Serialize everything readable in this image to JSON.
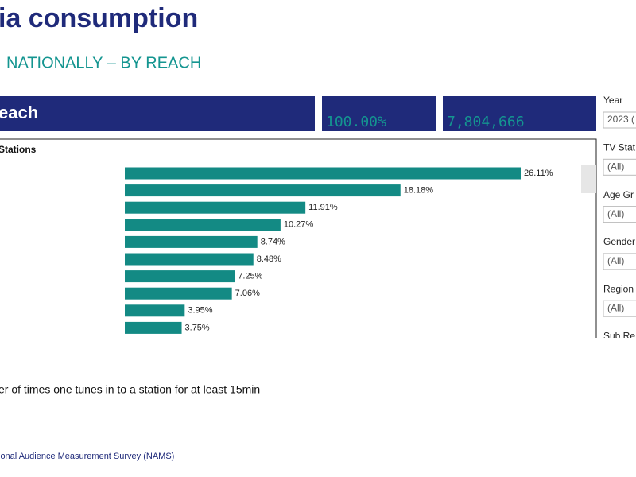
{
  "header": {
    "title": "ia consumption",
    "subtitle": "NATIONALLY – BY REACH"
  },
  "kpis": {
    "label": "each",
    "share": "100.00%",
    "total": "7,804,666"
  },
  "chart_data": {
    "type": "bar",
    "orientation": "horizontal",
    "title": "Stations",
    "categories": [
      null,
      null,
      null,
      null,
      null,
      null,
      null,
      null,
      null,
      null
    ],
    "values": [
      26.11,
      18.18,
      11.91,
      10.27,
      8.74,
      8.48,
      7.25,
      7.06,
      3.95,
      3.75
    ],
    "value_labels": [
      "26.11%",
      "18.18%",
      "11.91%",
      "10.27%",
      "8.74%",
      "8.48%",
      "7.25%",
      "7.06%",
      "3.95%",
      "3.75%"
    ],
    "color": "#138a84"
  },
  "filters": [
    {
      "label": "Year",
      "value": "2023 ("
    },
    {
      "label": "TV Stat",
      "value": "(All)"
    },
    {
      "label": "Age Gr",
      "value": "(All)"
    },
    {
      "label": "Gender",
      "value": "(All)"
    },
    {
      "label": "Region",
      "value": "(All)"
    },
    {
      "label": "Sub Re"
    }
  ],
  "note": "er of times one tunes in to a station for at least 15min",
  "footer": "ional Audience Measurement Survey (NAMS)"
}
